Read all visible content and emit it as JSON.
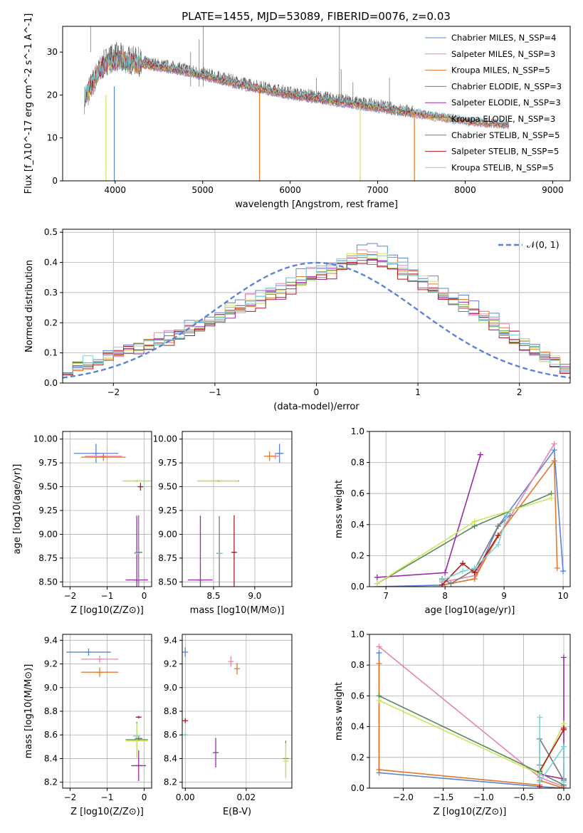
{
  "figure": {
    "title": "PLATE=1455, MJD=53089, FIBERID=0076, z=0.03"
  },
  "colors": {
    "Chabrier MILES": "#5b84d6",
    "Salpeter MILES": "#e885b3",
    "Kroupa MILES": "#e07a2e",
    "Chabrier ELODIE": "#5a8a5e",
    "Salpeter ELODIE": "#9a2aaa",
    "Kroupa ELODIE": "#cde65a",
    "Chabrier STELIB": "#7a7a7a",
    "Salpeter STELIB": "#b0191e",
    "Kroupa STELIB": "#7ad4d8",
    "grid": "#b0b0b0"
  },
  "chart_data": [
    {
      "id": "spectrum",
      "type": "line",
      "title": "PLATE=1455, MJD=53089, FIBERID=0076, z=0.03",
      "xlabel": "wavelength [Angstrom, rest frame]",
      "ylabel": "Flux [f_λ10^-17 erg cm^-2 s^-1 A^-1]",
      "xlim": [
        3400,
        9200
      ],
      "ylim": [
        0,
        36
      ],
      "xticks": [
        4000,
        5000,
        6000,
        7000,
        8000,
        9000
      ],
      "yticks": [
        0,
        10,
        20,
        30
      ],
      "grid": false,
      "legend_position": "top-right",
      "legend": [
        {
          "label": "Chabrier MILES, N_SSP=4",
          "key": "Chabrier MILES"
        },
        {
          "label": "Salpeter MILES, N_SSP=3",
          "key": "Salpeter MILES"
        },
        {
          "label": "Kroupa MILES, N_SSP=5",
          "key": "Kroupa MILES"
        },
        {
          "label": "Chabrier ELODIE, N_SSP=3",
          "key": "Chabrier ELODIE"
        },
        {
          "label": "Salpeter ELODIE, N_SSP=3",
          "key": "Salpeter ELODIE"
        },
        {
          "label": "Kroupa ELODIE, N_SSP=3",
          "key": "Kroupa ELODIE"
        },
        {
          "label": "Chabrier STELIB, N_SSP=5",
          "key": "Chabrier STELIB"
        },
        {
          "label": "Salpeter STELIB, N_SSP=5",
          "key": "Salpeter STELIB"
        },
        {
          "label": "Kroupa STELIB, N_SSP=5",
          "key": "Kroupa STELIB"
        }
      ],
      "data_envelope": {
        "x": [
          3650,
          3700,
          3800,
          3900,
          4000,
          4200,
          4500,
          4800,
          5000,
          5500,
          6000,
          6500,
          7000,
          7400
        ],
        "y": [
          19,
          21,
          25,
          28,
          29,
          28,
          27,
          26,
          25,
          22.5,
          20.5,
          19,
          17.5,
          16
        ]
      },
      "model_envelope": {
        "x": [
          3650,
          3700,
          3800,
          3900,
          4000,
          4200,
          4500,
          4800,
          5000,
          5500,
          6000,
          6500,
          7000,
          7500,
          8000,
          8500
        ],
        "y": [
          19.5,
          21,
          25,
          27.5,
          28,
          27.5,
          26.5,
          25.5,
          24.5,
          22,
          20,
          18.5,
          17,
          15.5,
          14,
          13
        ]
      },
      "features": [
        {
          "x": 3720,
          "ymin": 30,
          "ymax": 36
        },
        {
          "x": 4862,
          "ymin": 22,
          "ymax": 30
        },
        {
          "x": 4960,
          "ymin": 22,
          "ymax": 33
        },
        {
          "x": 5007,
          "ymin": 22,
          "ymax": 36
        },
        {
          "x": 6300,
          "ymin": 19,
          "ymax": 24
        },
        {
          "x": 6563,
          "ymin": 19,
          "ymax": 36
        },
        {
          "x": 6583,
          "ymin": 19,
          "ymax": 26
        },
        {
          "x": 6717,
          "ymin": 18,
          "ymax": 23
        },
        {
          "x": 7135,
          "ymin": 16,
          "ymax": 24
        }
      ],
      "dropouts": [
        {
          "x": 3895,
          "key": "Kroupa ELODIE",
          "y": 0,
          "from": 20
        },
        {
          "x": 3990,
          "key": "Chabrier MILES",
          "y": 0,
          "from": 22
        },
        {
          "x": 5650,
          "key": "Kroupa MILES",
          "y": 0,
          "from": 22
        },
        {
          "x": 6800,
          "key": "Kroupa ELODIE",
          "y": 0,
          "from": 18
        },
        {
          "x": 7420,
          "key": "Kroupa MILES",
          "y": 0,
          "from": 16
        }
      ]
    },
    {
      "id": "residual-hist",
      "type": "line",
      "xlabel": "(data-model)/error",
      "ylabel": "Normed distribution",
      "xlim": [
        -2.5,
        2.5
      ],
      "ylim": [
        0,
        0.51
      ],
      "xticks": [
        -2,
        -1,
        0,
        1,
        2
      ],
      "yticks": [
        0.0,
        0.1,
        0.2,
        0.3,
        0.4,
        0.5
      ],
      "grid": true,
      "legend_position": "top-right",
      "reference_curve": {
        "label": "𝒩(0, 1)",
        "key": "Chabrier MILES"
      },
      "bin_edges_start": -2.5,
      "bin_width": 0.1,
      "base_profile": [
        0.05,
        0.06,
        0.07,
        0.08,
        0.09,
        0.1,
        0.11,
        0.12,
        0.13,
        0.14,
        0.15,
        0.16,
        0.18,
        0.19,
        0.21,
        0.22,
        0.24,
        0.25,
        0.27,
        0.28,
        0.3,
        0.31,
        0.33,
        0.34,
        0.36,
        0.37,
        0.38,
        0.4,
        0.41,
        0.42,
        0.42,
        0.41,
        0.4,
        0.38,
        0.36,
        0.34,
        0.32,
        0.3,
        0.28,
        0.26,
        0.24,
        0.22,
        0.2,
        0.17,
        0.15,
        0.13,
        0.11,
        0.09,
        0.07,
        0.05
      ],
      "series_offsets": [
        {
          "key": "Chabrier MILES",
          "scale": 1.06,
          "jitter": 0.02
        },
        {
          "key": "Salpeter MILES",
          "scale": 1.02,
          "jitter": 0.025
        },
        {
          "key": "Kroupa MILES",
          "scale": 1.0,
          "jitter": 0.02
        },
        {
          "key": "Chabrier ELODIE",
          "scale": 0.98,
          "jitter": 0.015
        },
        {
          "key": "Salpeter ELODIE",
          "scale": 0.96,
          "jitter": 0.02
        },
        {
          "key": "Kroupa ELODIE",
          "scale": 1.0,
          "jitter": 0.02
        },
        {
          "key": "Chabrier STELIB",
          "scale": 0.97,
          "jitter": 0.015
        },
        {
          "key": "Salpeter STELIB",
          "scale": 0.95,
          "jitter": 0.02
        },
        {
          "key": "Kroupa STELIB",
          "scale": 1.02,
          "jitter": 0.02
        }
      ]
    },
    {
      "id": "age-vs-Z",
      "type": "scatter",
      "xlabel": "Z [log10(Z/Z⊙)]",
      "ylabel": "age  [log10(age/yr)]",
      "xlim": [
        -2.2,
        0.2
      ],
      "ylim": [
        8.45,
        10.08
      ],
      "xticks": [
        -2,
        -1,
        0
      ],
      "yticks": [
        8.5,
        8.75,
        9.0,
        9.25,
        9.5,
        9.75,
        10.0
      ],
      "grid": true,
      "points": [
        {
          "key": "Chabrier MILES",
          "x": -1.3,
          "xerr": 0.6,
          "y": 9.85,
          "yerr": 0.2
        },
        {
          "key": "Salpeter MILES",
          "x": -1.1,
          "xerr": 0.5,
          "y": 9.82,
          "yerr": 0.05
        },
        {
          "key": "Kroupa MILES",
          "x": -1.1,
          "xerr": 0.6,
          "y": 9.81,
          "yerr": 0.08
        },
        {
          "key": "Chabrier ELODIE",
          "x": -0.2,
          "xerr": 0.35,
          "y": 9.56,
          "yerr": 0.02
        },
        {
          "key": "Salpeter ELODIE",
          "x": -0.2,
          "xerr": 0.3,
          "y": 8.52,
          "yerr": 1.35
        },
        {
          "key": "Kroupa ELODIE",
          "x": -0.2,
          "xerr": 0.4,
          "y": 9.56,
          "yerr": 0.02
        },
        {
          "key": "Chabrier STELIB",
          "x": -0.15,
          "xerr": 0.1,
          "y": 8.81,
          "yerr": 0.78
        },
        {
          "key": "Salpeter STELIB",
          "x": -0.1,
          "xerr": 0.05,
          "y": 9.5,
          "yerr": 0.08
        },
        {
          "key": "Kroupa STELIB",
          "x": -0.2,
          "xerr": 0.08,
          "y": 8.8,
          "yerr": 0.02
        }
      ]
    },
    {
      "id": "age-vs-mass",
      "type": "scatter",
      "xlabel": "mass [log10(M/M⊙)]",
      "ylabel": "",
      "xlim": [
        8.12,
        9.45
      ],
      "ylim": [
        8.45,
        10.08
      ],
      "xticks": [
        8.5,
        9.0
      ],
      "yticks": [
        8.5,
        8.75,
        9.0,
        9.25,
        9.5,
        9.75,
        10.0
      ],
      "grid": true,
      "points": [
        {
          "key": "Chabrier MILES",
          "x": 9.3,
          "xerr": 0.05,
          "y": 9.85,
          "yerr": 0.2
        },
        {
          "key": "Salpeter MILES",
          "x": 9.25,
          "xerr": 0.05,
          "y": 9.82,
          "yerr": 0.06
        },
        {
          "key": "Kroupa MILES",
          "x": 9.18,
          "xerr": 0.07,
          "y": 9.82,
          "yerr": 0.1
        },
        {
          "key": "Chabrier ELODIE",
          "x": 8.56,
          "xerr": 0.25,
          "y": 9.56,
          "yerr": 0.02
        },
        {
          "key": "Salpeter ELODIE",
          "x": 8.34,
          "xerr": 0.15,
          "y": 8.52,
          "yerr": 1.35
        },
        {
          "key": "Kroupa ELODIE",
          "x": 8.55,
          "xerr": 0.25,
          "y": 9.56,
          "yerr": 0.02
        },
        {
          "key": "Chabrier STELIB",
          "x": 8.57,
          "xerr": 0.03,
          "y": 8.8,
          "yerr": 0.78
        },
        {
          "key": "Salpeter STELIB",
          "x": 8.75,
          "xerr": 0.02,
          "y": 8.81,
          "yerr": 0.78
        },
        {
          "key": "Kroupa STELIB",
          "x": 8.58,
          "xerr": 0.02,
          "y": 8.8,
          "yerr": 0.02
        }
      ]
    },
    {
      "id": "mass-weight-vs-age",
      "type": "line",
      "xlabel": "age  [log10(age/yr)]",
      "ylabel": "mass weight",
      "xlim": [
        6.72,
        10.12
      ],
      "ylim": [
        0,
        1.0
      ],
      "xticks": [
        7,
        8,
        9,
        10
      ],
      "yticks": [
        0.0,
        0.2,
        0.4,
        0.6,
        0.8,
        1.0
      ],
      "grid": true,
      "series": [
        {
          "key": "Chabrier MILES",
          "x": [
            6.85,
            7.95,
            8.5,
            8.9,
            9.85,
            10.0
          ],
          "y": [
            0.0,
            0.01,
            0.05,
            0.39,
            0.88,
            0.1
          ]
        },
        {
          "key": "Salpeter MILES",
          "x": [
            7.95,
            8.5,
            9.85
          ],
          "y": [
            0.03,
            0.07,
            0.92
          ]
        },
        {
          "key": "Kroupa MILES",
          "x": [
            7.95,
            8.5,
            8.9,
            9.85,
            9.9
          ],
          "y": [
            0.01,
            0.05,
            0.33,
            0.81,
            0.12
          ]
        },
        {
          "key": "Chabrier ELODIE",
          "x": [
            6.85,
            8.5,
            9.8
          ],
          "y": [
            0.02,
            0.39,
            0.6
          ]
        },
        {
          "key": "Salpeter ELODIE",
          "x": [
            6.85,
            8.0,
            8.6
          ],
          "y": [
            0.06,
            0.09,
            0.85
          ]
        },
        {
          "key": "Kroupa ELODIE",
          "x": [
            6.85,
            8.5,
            9.8
          ],
          "y": [
            0.02,
            0.42,
            0.57
          ]
        },
        {
          "key": "Chabrier STELIB",
          "x": [
            7.95,
            8.1,
            8.5,
            8.9,
            9.1
          ],
          "y": [
            0.05,
            0.02,
            0.11,
            0.39,
            0.46
          ]
        },
        {
          "key": "Salpeter STELIB",
          "x": [
            7.95,
            8.3,
            8.5,
            8.9
          ],
          "y": [
            0.01,
            0.15,
            0.09,
            0.33
          ]
        },
        {
          "key": "Kroupa STELIB",
          "x": [
            7.95,
            8.3,
            8.5,
            8.9,
            9.05
          ],
          "y": [
            0.04,
            0.1,
            0.12,
            0.27,
            0.46
          ]
        }
      ]
    },
    {
      "id": "mass-vs-Z",
      "type": "scatter",
      "xlabel": "Z [log10(Z/Z⊙)]",
      "ylabel": "mass [log10(M/M⊙)]",
      "xlim": [
        -2.2,
        0.2
      ],
      "ylim": [
        8.15,
        9.45
      ],
      "xticks": [
        -2,
        -1,
        0
      ],
      "yticks": [
        8.2,
        8.4,
        8.6,
        8.8,
        9.0,
        9.2,
        9.4
      ],
      "grid": true,
      "points": [
        {
          "key": "Chabrier MILES",
          "x": -1.5,
          "xerr": 0.6,
          "y": 9.3,
          "yerr": 0.06
        },
        {
          "key": "Salpeter MILES",
          "x": -1.2,
          "xerr": 0.5,
          "y": 9.24,
          "yerr": 0.06
        },
        {
          "key": "Kroupa MILES",
          "x": -1.2,
          "xerr": 0.5,
          "y": 9.13,
          "yerr": 0.08
        },
        {
          "key": "Chabrier ELODIE",
          "x": -0.2,
          "xerr": 0.3,
          "y": 8.56,
          "yerr": 0.3
        },
        {
          "key": "Salpeter ELODIE",
          "x": -0.15,
          "xerr": 0.2,
          "y": 8.34,
          "yerr": 0.26
        },
        {
          "key": "Kroupa ELODIE",
          "x": -0.2,
          "xerr": 0.3,
          "y": 8.55,
          "yerr": 0.3
        },
        {
          "key": "Chabrier STELIB",
          "x": -0.15,
          "xerr": 0.1,
          "y": 8.57,
          "yerr": 0.03
        },
        {
          "key": "Salpeter STELIB",
          "x": -0.15,
          "xerr": 0.05,
          "y": 8.75,
          "yerr": 0.02
        },
        {
          "key": "Kroupa STELIB",
          "x": -0.2,
          "xerr": 0.1,
          "y": 8.59,
          "yerr": 0.02
        }
      ]
    },
    {
      "id": "mass-vs-ebv",
      "type": "scatter",
      "xlabel": "E(B-V)",
      "ylabel": "",
      "xlim": [
        -0.001,
        0.035
      ],
      "ylim": [
        8.15,
        9.45
      ],
      "xticks": [
        0.0,
        0.02
      ],
      "yticks": [
        8.2,
        8.4,
        8.6,
        8.8,
        9.0,
        9.2,
        9.4
      ],
      "grid": true,
      "points": [
        {
          "key": "Chabrier MILES",
          "x": 0.0,
          "xerr": 0,
          "y": 9.3,
          "yerr": 0.08
        },
        {
          "key": "Salpeter MILES",
          "x": 0.015,
          "xerr": 0,
          "y": 9.22,
          "yerr": 0.09
        },
        {
          "key": "Kroupa MILES",
          "x": 0.017,
          "xerr": 0,
          "y": 9.16,
          "yerr": 0.1
        },
        {
          "key": "Chabrier ELODIE",
          "x": 0.033,
          "xerr": 0,
          "y": 8.4,
          "yerr": 0.3
        },
        {
          "key": "Salpeter ELODIE",
          "x": 0.01,
          "xerr": 0,
          "y": 8.45,
          "yerr": 0.25
        },
        {
          "key": "Kroupa ELODIE",
          "x": 0.033,
          "xerr": 0,
          "y": 8.38,
          "yerr": 0.3
        },
        {
          "key": "Chabrier STELIB",
          "x": 0.0,
          "xerr": 0,
          "y": 8.6,
          "yerr": 0.02
        },
        {
          "key": "Salpeter STELIB",
          "x": 0.0,
          "xerr": 0,
          "y": 8.72,
          "yerr": 0.04
        },
        {
          "key": "Kroupa STELIB",
          "x": 0.0,
          "xerr": 0,
          "y": 8.6,
          "yerr": 0.02
        }
      ]
    },
    {
      "id": "mass-weight-vs-Z",
      "type": "line",
      "xlabel": "Z [log10(Z/Z⊙)]",
      "ylabel": "mass weight",
      "xlim": [
        -2.42,
        0.08
      ],
      "ylim": [
        0,
        1.0
      ],
      "xticks": [
        -2.0,
        -1.5,
        -1.0,
        -0.5,
        0.0
      ],
      "yticks": [
        0.0,
        0.2,
        0.4,
        0.6,
        0.8,
        1.0
      ],
      "grid": true,
      "series": [
        {
          "key": "Chabrier MILES",
          "x": [
            -2.3,
            -2.3,
            -0.3,
            0.0,
            0.0
          ],
          "y": [
            0.88,
            0.1,
            0.01,
            0.0,
            0.0
          ]
        },
        {
          "key": "Salpeter MILES",
          "x": [
            -2.3,
            -0.3,
            0.0
          ],
          "y": [
            0.92,
            0.07,
            0.01
          ]
        },
        {
          "key": "Kroupa MILES",
          "x": [
            -2.3,
            -2.3,
            -0.3,
            -0.3,
            0.0
          ],
          "y": [
            0.81,
            0.12,
            0.02,
            0.05,
            0.0
          ]
        },
        {
          "key": "Chabrier ELODIE",
          "x": [
            -2.3,
            -0.3,
            0.0
          ],
          "y": [
            0.6,
            0.1,
            0.02
          ]
        },
        {
          "key": "Salpeter ELODIE",
          "x": [
            -0.3,
            0.0,
            0.0
          ],
          "y": [
            0.09,
            0.06,
            0.85
          ]
        },
        {
          "key": "Kroupa ELODIE",
          "x": [
            -2.3,
            -0.3,
            0.0
          ],
          "y": [
            0.57,
            0.09,
            0.42
          ]
        },
        {
          "key": "Chabrier STELIB",
          "x": [
            -0.3,
            -0.3,
            0.0
          ],
          "y": [
            0.15,
            0.32,
            0.05
          ]
        },
        {
          "key": "Salpeter STELIB",
          "x": [
            -0.3,
            -0.3,
            0.0,
            0.0
          ],
          "y": [
            0.01,
            0.11,
            0.38,
            0.39
          ]
        },
        {
          "key": "Kroupa STELIB",
          "x": [
            -0.3,
            -0.3,
            0.0,
            0.0
          ],
          "y": [
            0.46,
            0.04,
            0.27,
            0.04
          ]
        }
      ]
    }
  ]
}
